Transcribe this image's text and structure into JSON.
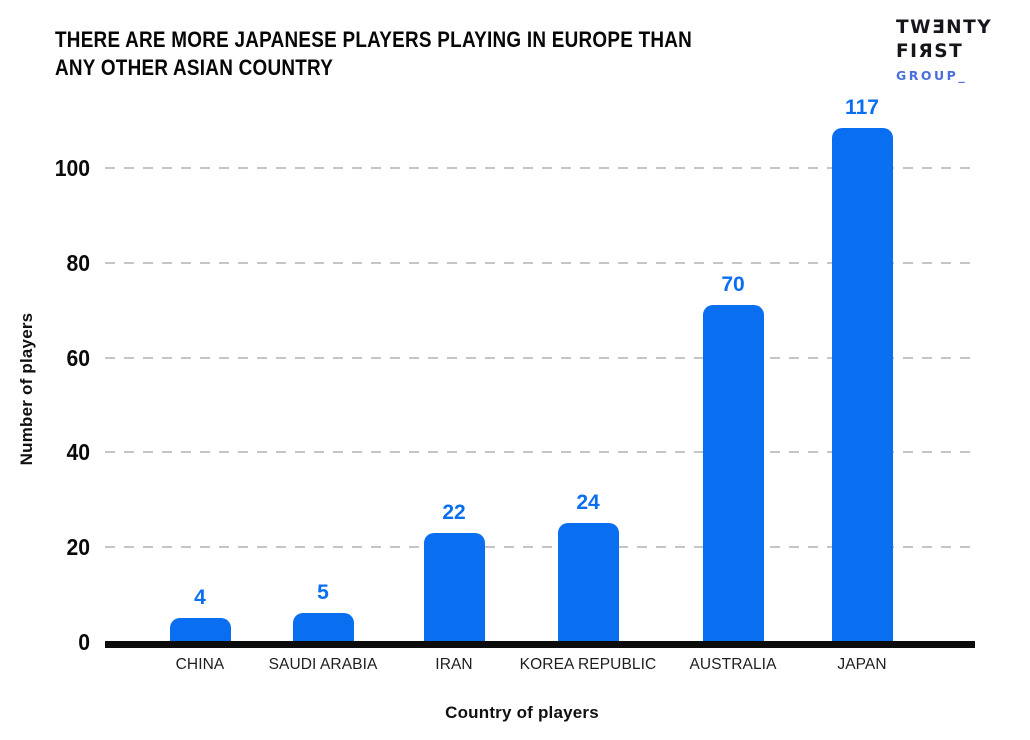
{
  "header": {
    "title_line1": "THERE ARE MORE JAPANESE PLAYERS PLAYING IN EUROPE THAN",
    "title_line2": "ANY OTHER ASIAN COUNTRY"
  },
  "logo": {
    "line1": "TWƎNTY",
    "line2": "FIЯST",
    "line3": "GROUP_"
  },
  "chart_data": {
    "type": "bar",
    "title": "THERE ARE MORE JAPANESE PLAYERS PLAYING IN EUROPE THAN ANY OTHER ASIAN COUNTRY",
    "categories": [
      "CHINA",
      "SAUDI ARABIA",
      "IRAN",
      "KOREA REPUBLIC",
      "AUSTRALIA",
      "JAPAN"
    ],
    "values": [
      4,
      5,
      22,
      24,
      70,
      117
    ],
    "data_labels": [
      "4",
      "5",
      "22",
      "24",
      "70",
      "117"
    ],
    "xlabel": "Country of players",
    "ylabel": "Number of players",
    "yticks": [
      0,
      20,
      40,
      60,
      80,
      100
    ],
    "ylim": [
      0,
      120
    ],
    "grid": "horizontal-dashed",
    "legend": "none",
    "bar_color": "#0a6ef0",
    "data_label_color": "#0a6ef0",
    "grid_color": "#c5c5c5",
    "axis_color": "#0c0c0c"
  },
  "colors": {
    "background": "#ffffff",
    "title_text": "#070707",
    "logo_text": "#15151c",
    "logo_group_blue": "#4a6fdb",
    "bar_blue": "#0a6ef0"
  }
}
